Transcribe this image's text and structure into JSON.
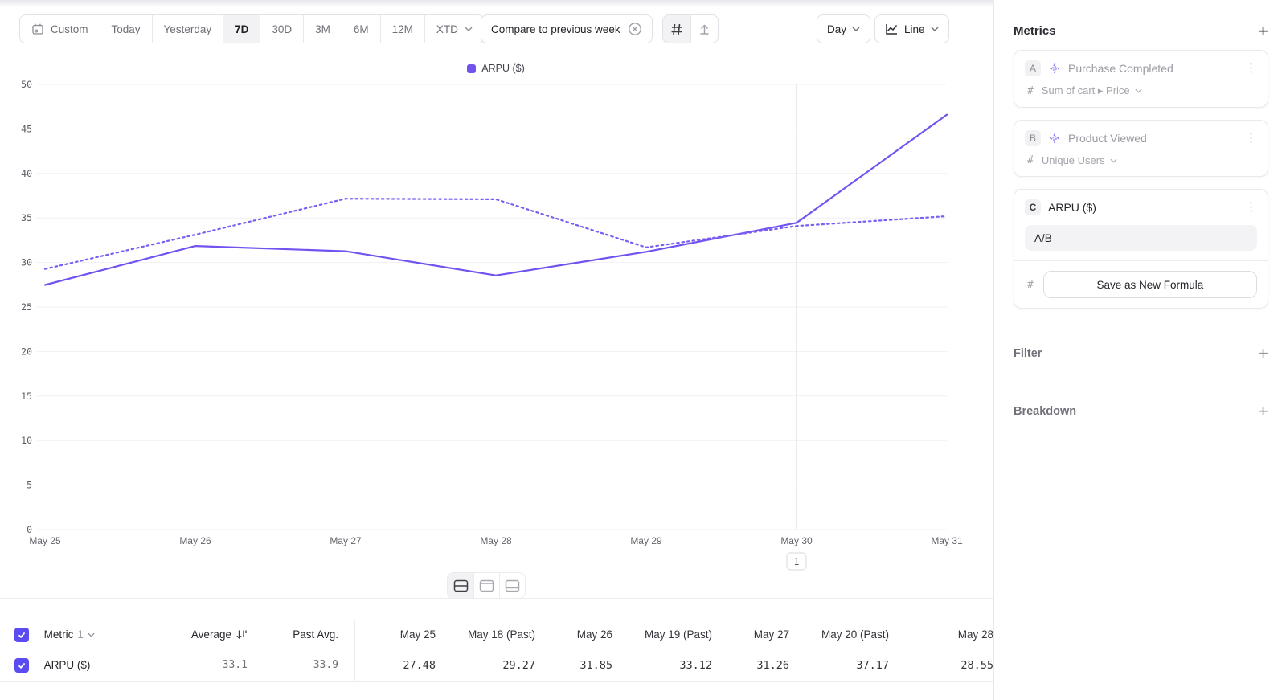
{
  "toolbar": {
    "date_ranges": [
      "Custom",
      "Today",
      "Yesterday",
      "7D",
      "30D",
      "3M",
      "6M",
      "12M",
      "XTD"
    ],
    "selected_range": "7D",
    "compare_label": "Compare to previous week",
    "granularity_label": "Day",
    "chart_type_label": "Line"
  },
  "legend": {
    "label": "ARPU ($)",
    "color": "#7253f0"
  },
  "chart_data": {
    "type": "line",
    "x_labels": [
      "May 25",
      "May 26",
      "May 27",
      "May 28",
      "May 29",
      "May 30",
      "May 31"
    ],
    "ylim": [
      0,
      50
    ],
    "ytick_step": 5,
    "grid": true,
    "legend": [
      "ARPU ($)"
    ],
    "highlight_column": {
      "x_label": "May 30",
      "badge": "1"
    },
    "series": [
      {
        "name": "ARPU ($)",
        "line_style": "solid",
        "color": "#7253f0",
        "values": [
          27.48,
          31.85,
          31.26,
          28.55,
          31.2,
          34.45,
          46.6
        ]
      },
      {
        "name": "ARPU ($) previous week",
        "line_style": "dotted",
        "color": "#7a5ef2",
        "values": [
          29.27,
          33.12,
          37.17,
          37.1,
          31.7,
          34.1,
          35.2
        ]
      }
    ]
  },
  "layout_toggles": {
    "options": [
      "split-horizontal",
      "panel-top",
      "panel-bottom"
    ],
    "selected": "split-horizontal"
  },
  "table": {
    "metric_label": "Metric",
    "metric_count": "1",
    "summary_columns": [
      "Average",
      "Past Avg."
    ],
    "date_columns": [
      "May 25",
      "May 18 (Past)",
      "May 26",
      "May 19 (Past)",
      "May 27",
      "May 20 (Past)",
      "May 28"
    ],
    "rows": [
      {
        "name": "ARPU ($)",
        "checked": true,
        "summary": [
          "33.1",
          "33.9"
        ],
        "values": [
          "27.48",
          "29.27",
          "31.85",
          "33.12",
          "31.26",
          "37.17",
          "28.55"
        ]
      }
    ]
  },
  "sidebar": {
    "title": "Metrics",
    "cards": [
      {
        "letter": "A",
        "name": "Purchase Completed",
        "measure": "Sum of cart ▸ Price",
        "disabled": true
      },
      {
        "letter": "B",
        "name": "Product Viewed",
        "measure": "Unique Users",
        "disabled": true
      },
      {
        "letter": "C",
        "name": "ARPU ($)",
        "formula": "A/B",
        "save_button": "Save as New Formula"
      }
    ],
    "sections": [
      {
        "label": "Filter"
      },
      {
        "label": "Breakdown"
      }
    ]
  },
  "icons": {
    "add_glyph": "+",
    "kebab_glyph": "⋮",
    "hash_glyph": "#"
  }
}
